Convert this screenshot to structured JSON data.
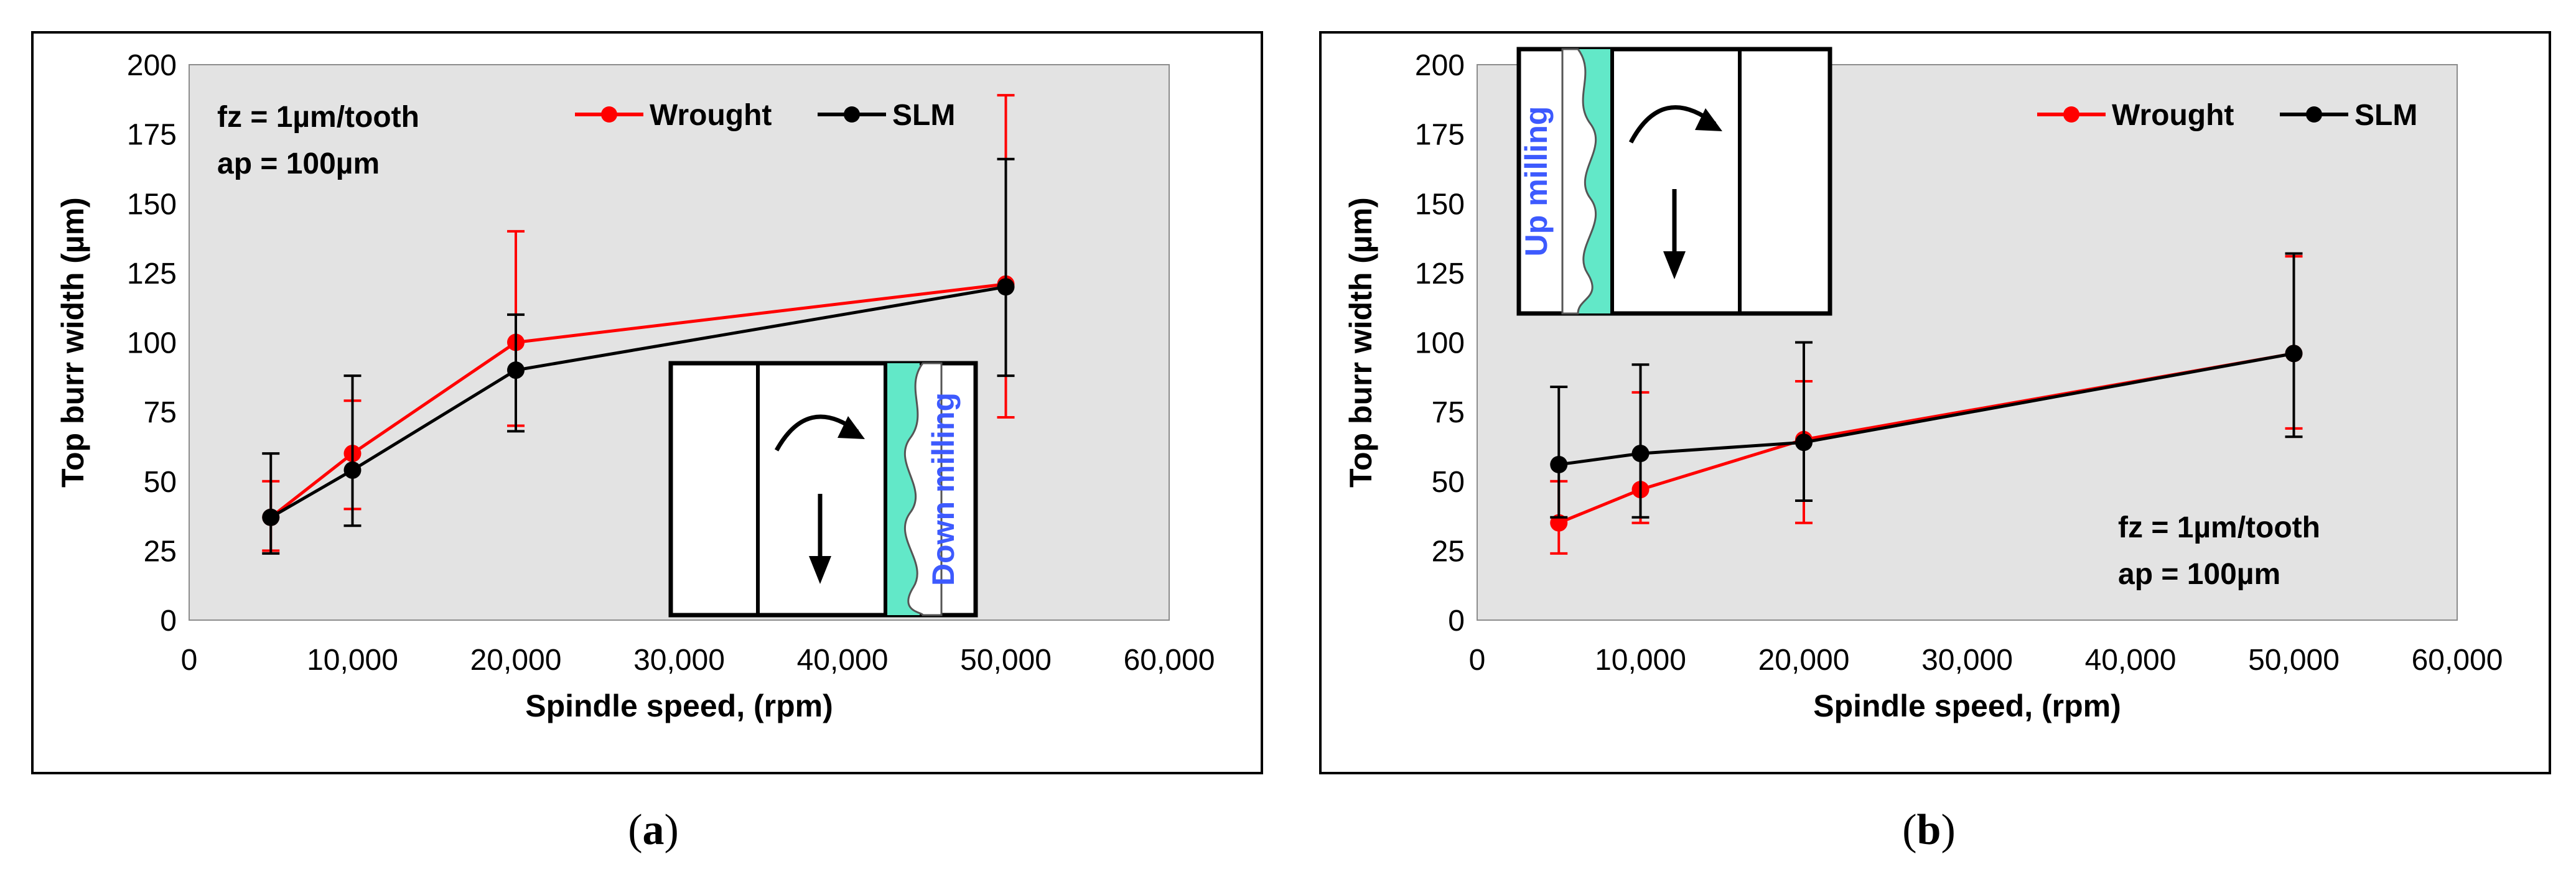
{
  "chart_data": [
    {
      "type": "line",
      "panel": "a",
      "xlabel": "Spindle speed, (rpm)",
      "ylabel": "Top burr width (µm)",
      "xlim": [
        0,
        60000
      ],
      "ylim": [
        0,
        200
      ],
      "x_ticks": [
        0,
        10000,
        20000,
        30000,
        40000,
        50000,
        60000
      ],
      "x_tick_labels": [
        "0",
        "10,000",
        "20,000",
        "30,000",
        "40,000",
        "50,000",
        "60,000"
      ],
      "y_ticks": [
        0,
        25,
        50,
        75,
        100,
        125,
        150,
        175,
        200
      ],
      "y_tick_labels": [
        "0",
        "25",
        "50",
        "75",
        "100",
        "125",
        "150",
        "175",
        "200"
      ],
      "x": [
        5000,
        10000,
        20000,
        50000
      ],
      "series": [
        {
          "name": "Wrought",
          "color": "#ff0000",
          "values": [
            37,
            60,
            100,
            121
          ],
          "err_low": [
            25,
            40,
            70,
            73
          ],
          "err_high": [
            50,
            79,
            140,
            189
          ]
        },
        {
          "name": "SLM",
          "color": "#000000",
          "values": [
            37,
            54,
            90,
            120
          ],
          "err_low": [
            24,
            34,
            68,
            88
          ],
          "err_high": [
            60,
            88,
            110,
            166
          ]
        }
      ],
      "annotation": [
        "fz = 1µm/tooth",
        "ap = 100µm"
      ],
      "inset_label": "Down milling",
      "legend": "top-right"
    },
    {
      "type": "line",
      "panel": "b",
      "xlabel": "Spindle speed, (rpm)",
      "ylabel": "Top burr width (µm)",
      "xlim": [
        0,
        60000
      ],
      "ylim": [
        0,
        200
      ],
      "x_ticks": [
        0,
        10000,
        20000,
        30000,
        40000,
        50000,
        60000
      ],
      "x_tick_labels": [
        "0",
        "10,000",
        "20,000",
        "30,000",
        "40,000",
        "50,000",
        "60,000"
      ],
      "y_ticks": [
        0,
        25,
        50,
        75,
        100,
        125,
        150,
        175,
        200
      ],
      "y_tick_labels": [
        "0",
        "25",
        "50",
        "75",
        "100",
        "125",
        "150",
        "175",
        "200"
      ],
      "x": [
        5000,
        10000,
        20000,
        50000
      ],
      "series": [
        {
          "name": "Wrought",
          "color": "#ff0000",
          "values": [
            35,
            47,
            65,
            96
          ],
          "err_low": [
            24,
            35,
            35,
            69
          ],
          "err_high": [
            50,
            82,
            86,
            131
          ]
        },
        {
          "name": "SLM",
          "color": "#000000",
          "values": [
            56,
            60,
            64,
            96
          ],
          "err_low": [
            37,
            37,
            43,
            66
          ],
          "err_high": [
            84,
            92,
            100,
            132
          ]
        }
      ],
      "annotation": [
        "fz = 1µm/tooth",
        "ap = 100µm"
      ],
      "inset_label": "Up milling",
      "legend": "top-right"
    }
  ],
  "captions": {
    "a": "a",
    "b": "b"
  },
  "colors": {
    "plot_bg": "#e3e3e3",
    "chip": "#62e8c8",
    "inset_text": "#3d5afe"
  }
}
